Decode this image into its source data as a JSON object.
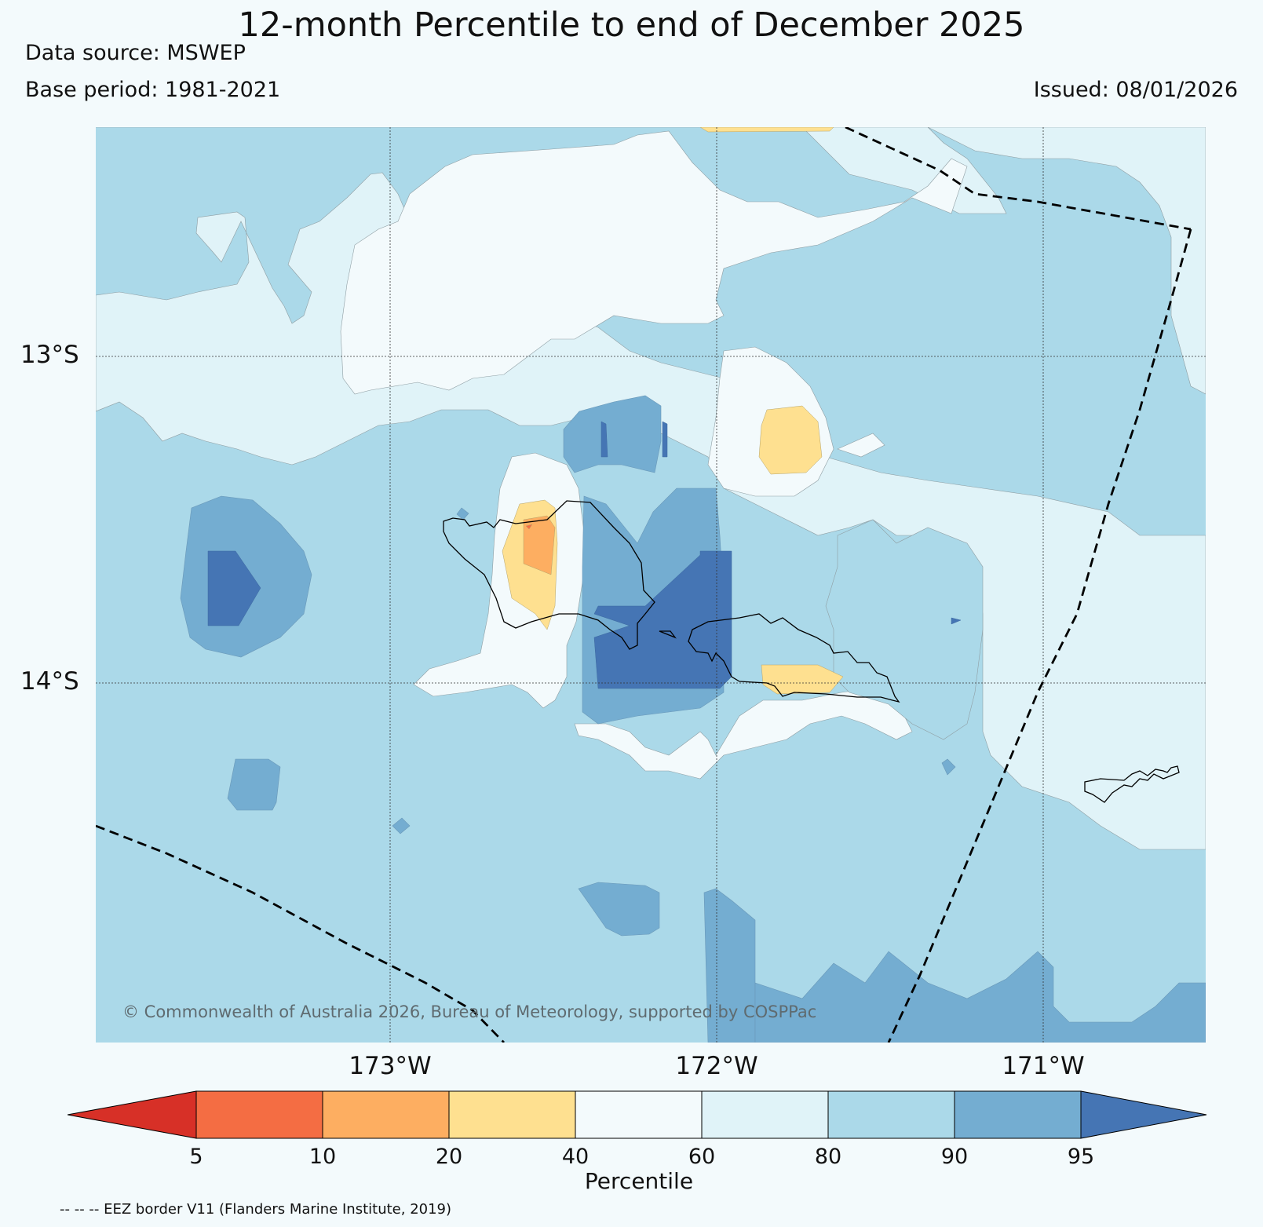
{
  "header": {
    "title": "12-month Percentile to end of December 2025",
    "data_source": "Data source: MSWEP",
    "base_period": "Base period: 1981-2021",
    "issued": "Issued: 08/01/2026"
  },
  "map": {
    "lat_labels": [
      "13°S",
      "14°S"
    ],
    "lon_labels": [
      "173°W",
      "172°W",
      "171°W"
    ],
    "copyright": "© Commonwealth of Australia 2026, Bureau of Meteorology, supported by COSPPac",
    "eez_note": "-- -- -- EEZ border V11 (Flanders Marine Institute, 2019)"
  },
  "legend": {
    "label": "Percentile",
    "ticks": [
      "5",
      "10",
      "20",
      "40",
      "60",
      "80",
      "90",
      "95"
    ],
    "colors": [
      "#d73027",
      "#f46d43",
      "#fdae61",
      "#fee090",
      "#f3fafc",
      "#e0f3f8",
      "#abd9e9",
      "#74add1",
      "#4575b4"
    ]
  }
}
